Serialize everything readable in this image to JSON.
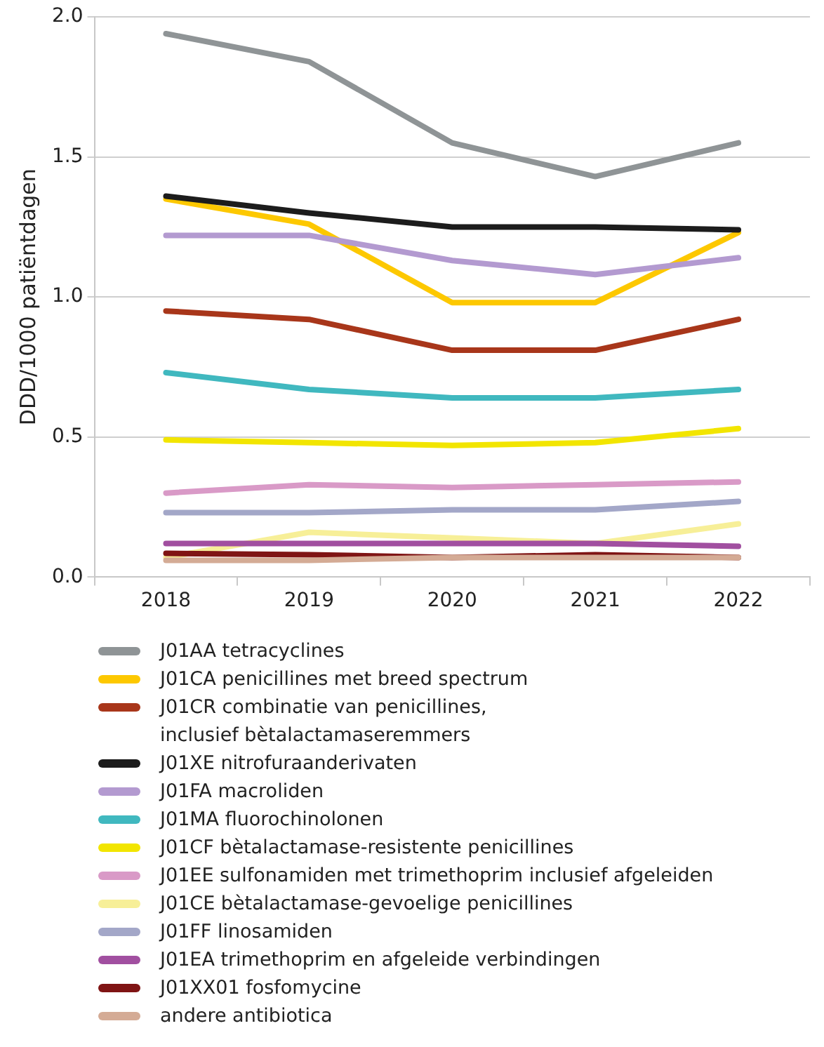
{
  "chart_data": {
    "type": "line",
    "ylabel": "DDD/1000 patiëntdagen",
    "categories": [
      "2018",
      "2019",
      "2020",
      "2021",
      "2022"
    ],
    "ylim": [
      0,
      2
    ],
    "yticks": [
      {
        "value": 0,
        "label": "0.0"
      },
      {
        "value": 0.5,
        "label": "0.5"
      },
      {
        "value": 1,
        "label": "1.0"
      },
      {
        "value": 1.5,
        "label": "1.5"
      },
      {
        "value": 2,
        "label": "2.0"
      }
    ],
    "grid": "y",
    "legend": "bottom",
    "marker": "none",
    "line_style": "solid",
    "series": [
      {
        "name": "J01AA tetracyclines",
        "color": "#8f9496",
        "values": [
          1.94,
          1.84,
          1.55,
          1.43,
          1.55
        ]
      },
      {
        "name": "J01CA penicillines met breed spectrum",
        "color": "#fdc800",
        "values": [
          1.35,
          1.26,
          0.98,
          0.98,
          1.23
        ]
      },
      {
        "name": "J01CR combinatie van penicillines,\ninclusief bètalactamaseremmers",
        "color": "#a8361a",
        "values": [
          0.95,
          0.92,
          0.81,
          0.81,
          0.92
        ]
      },
      {
        "name": "J01XE nitrofuraanderivaten",
        "color": "#1c1c1c",
        "values": [
          1.36,
          1.3,
          1.25,
          1.25,
          1.24
        ]
      },
      {
        "name": "J01FA macroliden",
        "color": "#b39ad0",
        "values": [
          1.22,
          1.22,
          1.13,
          1.08,
          1.14
        ]
      },
      {
        "name": "J01MA fluorochinolonen",
        "color": "#40b8bf",
        "values": [
          0.73,
          0.67,
          0.64,
          0.64,
          0.67
        ]
      },
      {
        "name": "J01CF bètalactamase-resistente penicillines",
        "color": "#f2e500",
        "values": [
          0.49,
          0.48,
          0.47,
          0.48,
          0.53
        ]
      },
      {
        "name": "J01EE sulfonamiden met trimethoprim inclusief afgeleiden",
        "color": "#d99ac7",
        "values": [
          0.3,
          0.33,
          0.32,
          0.33,
          0.34
        ]
      },
      {
        "name": "J01CE bètalactamase-gevoelige penicillines",
        "color": "#f7ef98",
        "values": [
          0.07,
          0.16,
          null,
          0.12,
          0.19
        ]
      },
      {
        "name": "J01FF linosamiden",
        "color": "#a3a7c8",
        "values": [
          0.23,
          0.23,
          0.24,
          0.24,
          0.27
        ]
      },
      {
        "name": "J01EA trimethoprim en afgeleide verbindingen",
        "color": "#a14fa0",
        "values": [
          0.12,
          0.12,
          0.12,
          0.12,
          0.11
        ]
      },
      {
        "name": "J01XX01 fosfomycine",
        "color": "#7f1414",
        "values": [
          0.085,
          0.08,
          0.07,
          0.08,
          0.07
        ]
      },
      {
        "name": "andere antibiotica",
        "color": "#d4ab95",
        "values": [
          0.06,
          0.06,
          0.07,
          0.07,
          0.07
        ]
      }
    ]
  }
}
